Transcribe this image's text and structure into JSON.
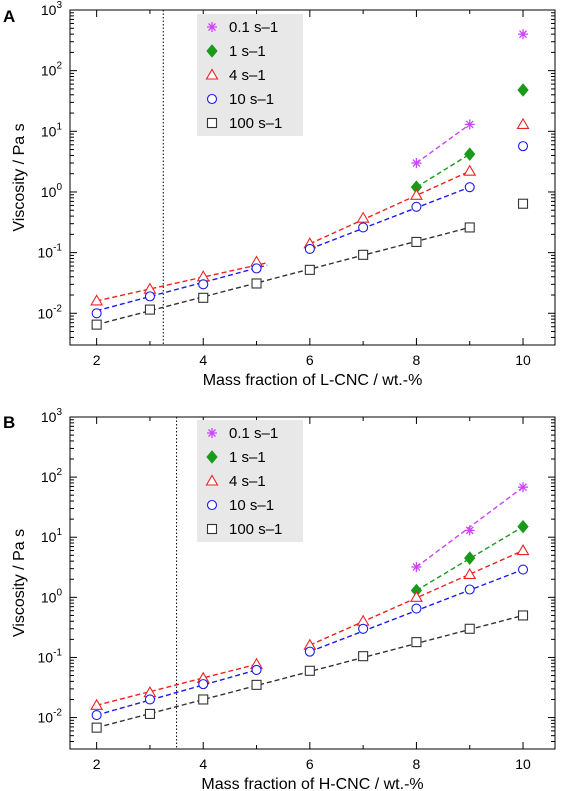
{
  "series_styles": [
    {
      "name": "0.1 s–1",
      "marker": "asterisk",
      "color": "#cc44ff",
      "fill": false
    },
    {
      "name": "1 s–1",
      "marker": "diamond",
      "color": "#1a9a1a",
      "fill": true
    },
    {
      "name": "4 s–1",
      "marker": "triangle",
      "color": "#ee2222",
      "fill": false
    },
    {
      "name": "10 s–1",
      "marker": "circle",
      "color": "#1a1aee",
      "fill": false
    },
    {
      "name": "100 s–1",
      "marker": "square",
      "color": "#333333",
      "fill": false
    }
  ],
  "chart_data": [
    {
      "panel": "A",
      "type": "scatter",
      "xlabel": "Mass fraction of L-CNC / wt.-%",
      "ylabel": "Viscosity / Pa s",
      "xlim": [
        1.5,
        10.6
      ],
      "ylim": [
        0.003,
        1000
      ],
      "y_scale": "log",
      "x_ticks": [
        2,
        4,
        6,
        8,
        10
      ],
      "y_ticks": [
        {
          "value": 0.01,
          "base": "10",
          "exp": "-2"
        },
        {
          "value": 0.1,
          "base": "10",
          "exp": "-1"
        },
        {
          "value": 1,
          "base": "10",
          "exp": "0"
        },
        {
          "value": 10,
          "base": "10",
          "exp": "1"
        },
        {
          "value": 100,
          "base": "10",
          "exp": "2"
        },
        {
          "value": 1000,
          "base": "10",
          "exp": "3"
        }
      ],
      "vertical_line_x": 3.25,
      "legend_position": "top-left",
      "series": [
        {
          "name": "0.1 s–1",
          "points": [
            [
              8,
              3.0
            ],
            [
              9,
              13
            ],
            [
              10,
              400
            ]
          ],
          "fits": [
            [
              [
                8,
                3.0
              ],
              [
                9,
                13
              ]
            ]
          ]
        },
        {
          "name": "1 s–1",
          "points": [
            [
              8,
              1.2
            ],
            [
              9,
              4.2
            ],
            [
              10,
              48
            ]
          ],
          "fits": [
            [
              [
                8,
                1.2
              ],
              [
                9,
                4.2
              ]
            ]
          ]
        },
        {
          "name": "4 s–1",
          "points": [
            [
              2,
              0.016
            ],
            [
              3,
              0.025
            ],
            [
              4,
              0.04
            ],
            [
              5,
              0.07
            ],
            [
              6,
              0.14
            ],
            [
              7,
              0.37
            ],
            [
              8,
              0.88
            ],
            [
              9,
              2.2
            ],
            [
              10,
              13
            ]
          ],
          "fits": [
            [
              [
                2,
                0.016
              ],
              [
                5.2,
                0.068
              ]
            ],
            [
              [
                6,
                0.14
              ],
              [
                9,
                2.2
              ]
            ]
          ]
        },
        {
          "name": "10 s–1",
          "points": [
            [
              2,
              0.01
            ],
            [
              3,
              0.019
            ],
            [
              4,
              0.03
            ],
            [
              5,
              0.055
            ],
            [
              6,
              0.115
            ],
            [
              7,
              0.26
            ],
            [
              8,
              0.57
            ],
            [
              9,
              1.2
            ],
            [
              10,
              5.7
            ]
          ],
          "fits": [
            [
              [
                2,
                0.011
              ],
              [
                5.2,
                0.062
              ]
            ],
            [
              [
                6,
                0.115
              ],
              [
                9,
                1.2
              ]
            ]
          ]
        },
        {
          "name": "100 s–1",
          "points": [
            [
              2,
              0.0065
            ],
            [
              3,
              0.0115
            ],
            [
              4,
              0.018
            ],
            [
              5,
              0.031
            ],
            [
              6,
              0.052
            ],
            [
              7,
              0.092
            ],
            [
              8,
              0.15
            ],
            [
              9,
              0.26
            ],
            [
              10,
              0.64
            ]
          ],
          "fits": [
            [
              [
                2,
                0.0065
              ],
              [
                9,
                0.26
              ]
            ]
          ]
        }
      ]
    },
    {
      "panel": "B",
      "type": "scatter",
      "xlabel": "Mass fraction of H-CNC / wt.-%",
      "ylabel": "Viscosity / Pa s",
      "xlim": [
        1.5,
        10.6
      ],
      "ylim": [
        0.003,
        1000
      ],
      "y_scale": "log",
      "x_ticks": [
        2,
        4,
        6,
        8,
        10
      ],
      "y_ticks": [
        {
          "value": 0.01,
          "base": "10",
          "exp": "-2"
        },
        {
          "value": 0.1,
          "base": "10",
          "exp": "-1"
        },
        {
          "value": 1,
          "base": "10",
          "exp": "0"
        },
        {
          "value": 10,
          "base": "10",
          "exp": "1"
        },
        {
          "value": 100,
          "base": "10",
          "exp": "2"
        },
        {
          "value": 1000,
          "base": "10",
          "exp": "3"
        }
      ],
      "vertical_line_x": 3.5,
      "legend_position": "top-left",
      "series": [
        {
          "name": "0.1 s–1",
          "points": [
            [
              8,
              3.2
            ],
            [
              9,
              13
            ],
            [
              10,
              68
            ]
          ],
          "fits": [
            [
              [
                8,
                3.2
              ],
              [
                10,
                68
              ]
            ]
          ]
        },
        {
          "name": "1 s–1",
          "points": [
            [
              8,
              1.3
            ],
            [
              9,
              4.5
            ],
            [
              10,
              15
            ]
          ],
          "fits": [
            [
              [
                8,
                1.3
              ],
              [
                10,
                15
              ]
            ]
          ]
        },
        {
          "name": "4 s–1",
          "points": [
            [
              2,
              0.016
            ],
            [
              3,
              0.026
            ],
            [
              4,
              0.045
            ],
            [
              5,
              0.077
            ],
            [
              6,
              0.16
            ],
            [
              7,
              0.4
            ],
            [
              8,
              1.0
            ],
            [
              9,
              2.4
            ],
            [
              10,
              6.0
            ]
          ],
          "fits": [
            [
              [
                2,
                0.016
              ],
              [
                5,
                0.077
              ]
            ],
            [
              [
                6,
                0.16
              ],
              [
                10,
                6.0
              ]
            ]
          ]
        },
        {
          "name": "10 s–1",
          "points": [
            [
              2,
              0.011
            ],
            [
              3,
              0.02
            ],
            [
              4,
              0.036
            ],
            [
              5,
              0.062
            ],
            [
              6,
              0.125
            ],
            [
              7,
              0.3
            ],
            [
              8,
              0.65
            ],
            [
              9,
              1.35
            ],
            [
              10,
              2.9
            ]
          ],
          "fits": [
            [
              [
                2,
                0.011
              ],
              [
                5,
                0.062
              ]
            ],
            [
              [
                6,
                0.125
              ],
              [
                10,
                2.9
              ]
            ]
          ]
        },
        {
          "name": "100 s–1",
          "points": [
            [
              2,
              0.0068
            ],
            [
              3,
              0.0115
            ],
            [
              4,
              0.02
            ],
            [
              5,
              0.035
            ],
            [
              6,
              0.06
            ],
            [
              7,
              0.105
            ],
            [
              8,
              0.18
            ],
            [
              9,
              0.3
            ],
            [
              10,
              0.5
            ]
          ],
          "fits": [
            [
              [
                2,
                0.0068
              ],
              [
                10,
                0.5
              ]
            ]
          ]
        }
      ]
    }
  ]
}
